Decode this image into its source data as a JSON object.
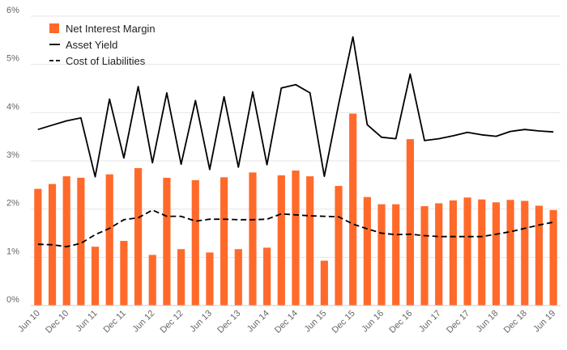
{
  "chart_data": {
    "type": "bar+line",
    "title": "",
    "xlabel": "",
    "ylabel": "",
    "ylim": [
      0,
      6
    ],
    "y_ticks": [
      "0%",
      "1%",
      "2%",
      "3%",
      "4%",
      "5%",
      "6%"
    ],
    "x_tick_labels": [
      "Jun 10",
      "Dec 10",
      "Jun 11",
      "Dec 11",
      "Jun 12",
      "Dec 12",
      "Jun 13",
      "Dec 13",
      "Jun 14",
      "Dec 14",
      "Jun 15",
      "Dec 15",
      "Jun 16",
      "Dec 16",
      "Jun 17",
      "Dec 17",
      "Jun 18",
      "Dec 18",
      "Jun 19"
    ],
    "legend": {
      "position": "top-left",
      "items": [
        "Net Interest Margin",
        "Asset Yield",
        "Cost of Liabilities"
      ]
    },
    "colors": {
      "bar": "#ff6a2b",
      "asset_yield": "#000000",
      "cost_of_liabilities": "#000000",
      "grid": "#e6e6e6",
      "axis": "#cccccc"
    },
    "series": [
      {
        "name": "Net Interest Margin",
        "kind": "bar",
        "values": [
          2.42,
          2.52,
          2.68,
          2.65,
          1.22,
          2.72,
          1.34,
          2.85,
          1.05,
          2.65,
          1.17,
          2.6,
          1.1,
          2.66,
          1.17,
          2.76,
          1.2,
          2.7,
          2.8,
          2.68,
          0.93,
          2.48,
          3.98,
          2.25,
          2.1,
          2.1,
          3.45,
          2.06,
          2.12,
          2.18,
          2.24,
          2.2,
          2.14,
          2.19,
          2.17,
          2.07,
          1.98
        ]
      },
      {
        "name": "Asset Yield",
        "kind": "line",
        "style": "solid",
        "values": [
          3.65,
          3.74,
          3.83,
          3.89,
          2.67,
          4.28,
          3.06,
          4.54,
          2.96,
          4.41,
          2.93,
          4.25,
          2.82,
          4.33,
          2.87,
          4.43,
          2.92,
          4.51,
          4.58,
          4.41,
          2.68,
          4.17,
          5.57,
          3.75,
          3.49,
          3.46,
          4.8,
          3.42,
          3.46,
          3.52,
          3.59,
          3.54,
          3.51,
          3.61,
          3.65,
          3.62,
          3.6
        ]
      },
      {
        "name": "Cost of Liabilities",
        "kind": "line",
        "style": "dashed",
        "values": [
          1.27,
          1.26,
          1.22,
          1.29,
          1.47,
          1.6,
          1.78,
          1.82,
          1.98,
          1.85,
          1.85,
          1.75,
          1.79,
          1.79,
          1.78,
          1.78,
          1.79,
          1.9,
          1.88,
          1.86,
          1.85,
          1.84,
          1.69,
          1.59,
          1.5,
          1.47,
          1.48,
          1.45,
          1.43,
          1.43,
          1.43,
          1.43,
          1.48,
          1.53,
          1.6,
          1.67,
          1.73
        ]
      }
    ]
  }
}
